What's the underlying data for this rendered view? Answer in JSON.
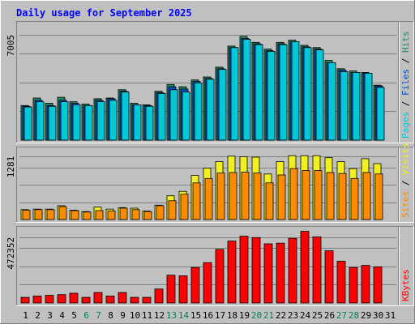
{
  "chart_data": {
    "type": "bar",
    "title": "Daily usage for September 2025",
    "categories": [
      "1",
      "2",
      "3",
      "4",
      "5",
      "6",
      "7",
      "8",
      "9",
      "10",
      "11",
      "12",
      "13",
      "14",
      "15",
      "16",
      "17",
      "18",
      "19",
      "20",
      "21",
      "22",
      "23",
      "24",
      "25",
      "26",
      "27",
      "28",
      "29",
      "30",
      "31"
    ],
    "weekend_days": [
      "6",
      "7",
      "13",
      "14",
      "20",
      "21",
      "27",
      "28"
    ],
    "panels": [
      {
        "id": "hits",
        "axis_label": "7005",
        "axis_value": 7005,
        "ymax": 7700,
        "legend": [
          {
            "text": "Pages",
            "color": "#00C8D8"
          },
          {
            "text": "Files",
            "color": "#0050C8"
          },
          {
            "text": "Hits",
            "color": "#1E8C64"
          }
        ],
        "series": [
          {
            "name": "Hits",
            "color": "#1E8C64",
            "values": [
              2300,
              2800,
              2450,
              2850,
              2550,
              2400,
              2750,
              2800,
              3350,
              2450,
              2350,
              3250,
              3700,
              3550,
              4000,
              4200,
              4850,
              6250,
              6900,
              6500,
              6050,
              6500,
              6650,
              6300,
              6150,
              5300,
              4750,
              4600,
              4500,
              3650,
              0
            ]
          },
          {
            "name": "Files",
            "color": "#0050C8",
            "values": [
              2250,
              2650,
              2300,
              2650,
              2450,
              2300,
              2650,
              2750,
              3250,
              2350,
              2300,
              3150,
              3550,
              3400,
              3900,
              4100,
              4750,
              6150,
              6750,
              6400,
              5950,
              6400,
              6550,
              6200,
              6050,
              5150,
              4650,
              4500,
              4450,
              3600,
              0
            ]
          },
          {
            "name": "Pages",
            "color": "#00C8D8",
            "values": [
              2200,
              2550,
              2250,
              2550,
              2350,
              2300,
              2550,
              2650,
              3200,
              2350,
              2250,
              3100,
              3350,
              3200,
              3800,
              4050,
              4700,
              6150,
              6700,
              6350,
              5900,
              6350,
              6550,
              6150,
              6000,
              5150,
              4550,
              4500,
              4450,
              3500,
              0
            ]
          }
        ]
      },
      {
        "id": "visits",
        "axis_label": "1281",
        "axis_value": 1281,
        "ymax": 1408,
        "legend": [
          {
            "text": "Sites",
            "color": "#FF8C00"
          },
          {
            "text": "Visits",
            "color": "#F0F020"
          }
        ],
        "series": [
          {
            "name": "Visits",
            "color": "#F0F020",
            "values": [
              200,
              210,
              210,
              280,
              190,
              160,
              250,
              210,
              240,
              230,
              170,
              290,
              480,
              570,
              890,
              1040,
              1170,
              1280,
              1270,
              1260,
              920,
              1170,
              1290,
              1290,
              1290,
              1250,
              1170,
              1030,
              1230,
              1130,
              0
            ]
          },
          {
            "name": "Sites",
            "color": "#FF8C00",
            "values": [
              190,
              200,
              200,
              260,
              180,
              150,
              180,
              170,
              230,
              200,
              160,
              280,
              380,
              510,
              740,
              830,
              940,
              950,
              960,
              940,
              740,
              900,
              1030,
              990,
              990,
              950,
              930,
              830,
              950,
              920,
              0
            ]
          }
        ]
      },
      {
        "id": "kbytes",
        "axis_label": "472352",
        "axis_value": 472352,
        "ymax": 530000,
        "legend": [
          {
            "text": "KBytes",
            "color": "#FF0000"
          }
        ],
        "series": [
          {
            "name": "KBytes",
            "color": "#FF0000",
            "values": [
              40000,
              50000,
              55000,
              60000,
              70000,
              40000,
              75000,
              50000,
              75000,
              40000,
              40000,
              100000,
              200000,
              195000,
              255000,
              290000,
              385000,
              445000,
              480000,
              470000,
              425000,
              430000,
              465000,
              515000,
              475000,
              375000,
              300000,
              255000,
              270000,
              260000,
              0
            ]
          }
        ]
      }
    ],
    "colors": {
      "background": "#C0C0C0",
      "title": "#0000FF",
      "weekday_label": "#000000",
      "weekend_label": "#00805C",
      "gridline": "#808080"
    }
  }
}
